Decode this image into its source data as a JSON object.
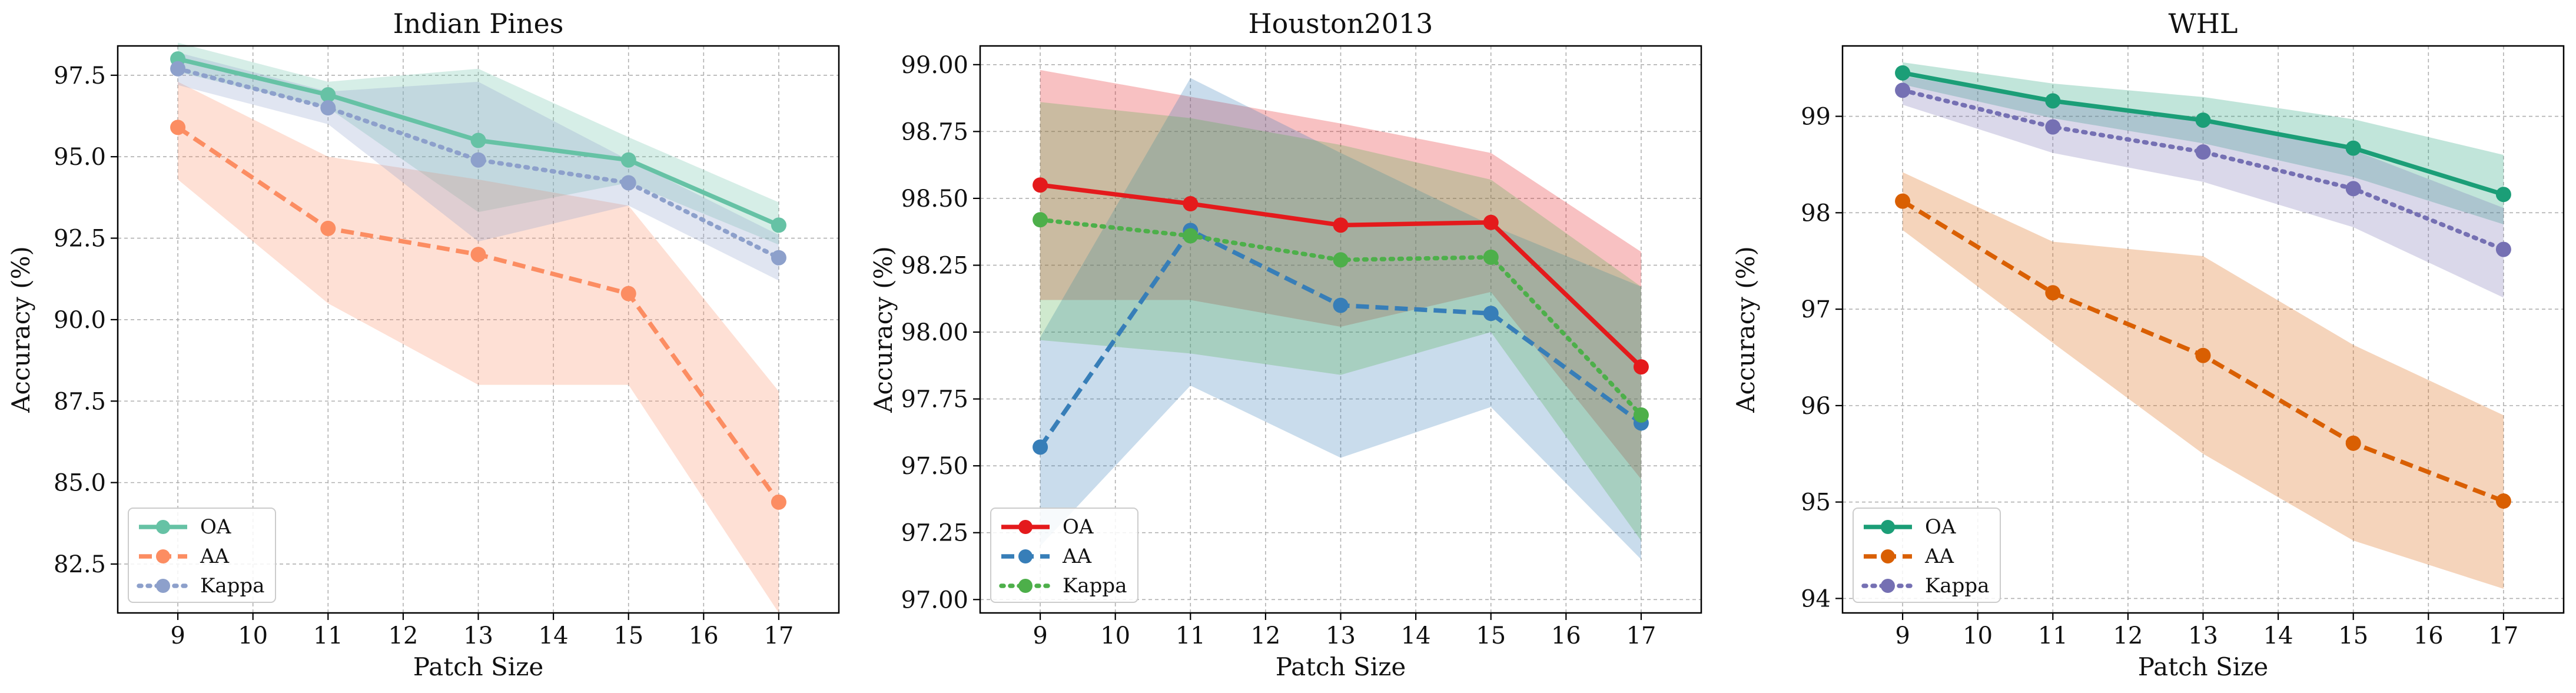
{
  "chart_data": [
    {
      "type": "line",
      "title": "Indian Pines",
      "xlabel": "Patch Size",
      "ylabel": "Accuracy (%)",
      "x": [
        9,
        11,
        13,
        15,
        17
      ],
      "xticks": [
        9,
        10,
        11,
        12,
        13,
        14,
        15,
        16,
        17
      ],
      "xticklabels": [
        "9",
        "10",
        "11",
        "12",
        "13",
        "14",
        "15",
        "16",
        "17"
      ],
      "xlim": [
        8.2,
        17.8
      ],
      "ylim": [
        81.0,
        98.4
      ],
      "yticks": [
        82.5,
        85.0,
        87.5,
        90.0,
        92.5,
        95.0,
        97.5
      ],
      "yticklabels": [
        "82.5",
        "85.0",
        "87.5",
        "90.0",
        "92.5",
        "95.0",
        "97.5"
      ],
      "grid": true,
      "legend": "lower-left",
      "series": [
        {
          "name": "OA",
          "color": "#66c2a5",
          "style": "solid",
          "values": [
            98.0,
            96.9,
            95.5,
            94.9,
            92.9
          ],
          "lower": [
            97.6,
            96.5,
            93.3,
            94.2,
            92.3
          ],
          "upper": [
            98.5,
            97.3,
            97.7,
            95.6,
            93.6
          ]
        },
        {
          "name": "AA",
          "color": "#fc8d62",
          "style": "dashed",
          "values": [
            95.9,
            92.8,
            92.0,
            90.8,
            84.4
          ],
          "lower": [
            94.3,
            90.5,
            88.0,
            88.0,
            81.0
          ],
          "upper": [
            97.3,
            95.0,
            94.3,
            93.5,
            87.8
          ]
        },
        {
          "name": "Kappa",
          "color": "#8da0cb",
          "style": "dotted",
          "values": [
            97.7,
            96.5,
            94.9,
            94.2,
            91.9
          ],
          "lower": [
            97.2,
            96.0,
            92.4,
            93.5,
            91.2
          ],
          "upper": [
            98.2,
            97.0,
            97.3,
            94.9,
            92.6
          ]
        }
      ]
    },
    {
      "type": "line",
      "title": "Houston2013",
      "xlabel": "Patch Size",
      "ylabel": "Accuracy (%)",
      "x": [
        9,
        11,
        13,
        15,
        17
      ],
      "xticks": [
        9,
        10,
        11,
        12,
        13,
        14,
        15,
        16,
        17
      ],
      "xticklabels": [
        "9",
        "10",
        "11",
        "12",
        "13",
        "14",
        "15",
        "16",
        "17"
      ],
      "xlim": [
        8.2,
        17.8
      ],
      "ylim": [
        96.95,
        99.07
      ],
      "yticks": [
        97.0,
        97.25,
        97.5,
        97.75,
        98.0,
        98.25,
        98.5,
        98.75,
        99.0
      ],
      "yticklabels": [
        "97.00",
        "97.25",
        "97.50",
        "97.75",
        "98.00",
        "98.25",
        "98.50",
        "98.75",
        "99.00"
      ],
      "grid": true,
      "legend": "lower-left",
      "series": [
        {
          "name": "OA",
          "color": "#e41a1c",
          "style": "solid",
          "values": [
            98.55,
            98.48,
            98.4,
            98.41,
            97.87
          ],
          "lower": [
            98.12,
            98.12,
            98.02,
            98.15,
            97.45
          ],
          "upper": [
            98.98,
            98.88,
            98.78,
            98.67,
            98.3
          ]
        },
        {
          "name": "AA",
          "color": "#377eb8",
          "style": "dashed",
          "values": [
            97.57,
            98.38,
            98.1,
            98.07,
            97.66
          ],
          "lower": [
            97.2,
            97.8,
            97.53,
            97.72,
            97.15
          ],
          "upper": [
            97.98,
            98.95,
            98.67,
            98.4,
            98.17
          ]
        },
        {
          "name": "Kappa",
          "color": "#4daf4a",
          "style": "dotted",
          "values": [
            98.42,
            98.36,
            98.27,
            98.28,
            97.69
          ],
          "lower": [
            97.97,
            97.92,
            97.84,
            98.0,
            97.22
          ],
          "upper": [
            98.86,
            98.8,
            98.7,
            98.57,
            98.17
          ]
        }
      ]
    },
    {
      "type": "line",
      "title": "WHL",
      "xlabel": "Patch Size",
      "ylabel": "Accuracy (%)",
      "x": [
        9,
        11,
        13,
        15,
        17
      ],
      "xticks": [
        9,
        10,
        11,
        12,
        13,
        14,
        15,
        16,
        17
      ],
      "xticklabels": [
        "9",
        "10",
        "11",
        "12",
        "13",
        "14",
        "15",
        "16",
        "17"
      ],
      "xlim": [
        8.2,
        17.8
      ],
      "ylim": [
        93.85,
        99.73
      ],
      "yticks": [
        94,
        95,
        96,
        97,
        98,
        99
      ],
      "yticklabels": [
        "94",
        "95",
        "96",
        "97",
        "98",
        "99"
      ],
      "grid": true,
      "legend": "lower-left",
      "series": [
        {
          "name": "OA",
          "color": "#1b9e77",
          "style": "solid",
          "values": [
            99.45,
            99.16,
            98.96,
            98.67,
            98.19
          ],
          "lower": [
            99.33,
            98.98,
            98.72,
            98.37,
            97.88
          ],
          "upper": [
            99.56,
            99.34,
            99.2,
            98.97,
            98.6
          ]
        },
        {
          "name": "AA",
          "color": "#d95f02",
          "style": "dashed",
          "values": [
            98.12,
            97.17,
            96.52,
            95.61,
            95.01
          ],
          "lower": [
            97.82,
            96.65,
            95.5,
            94.6,
            94.1
          ],
          "upper": [
            98.42,
            97.7,
            97.55,
            96.63,
            95.9
          ]
        },
        {
          "name": "Kappa",
          "color": "#7570b3",
          "style": "dotted",
          "values": [
            99.27,
            98.89,
            98.63,
            98.25,
            97.62
          ],
          "lower": [
            99.12,
            98.62,
            98.32,
            97.85,
            97.12
          ],
          "upper": [
            99.42,
            99.15,
            98.95,
            98.65,
            98.05
          ]
        }
      ]
    }
  ]
}
